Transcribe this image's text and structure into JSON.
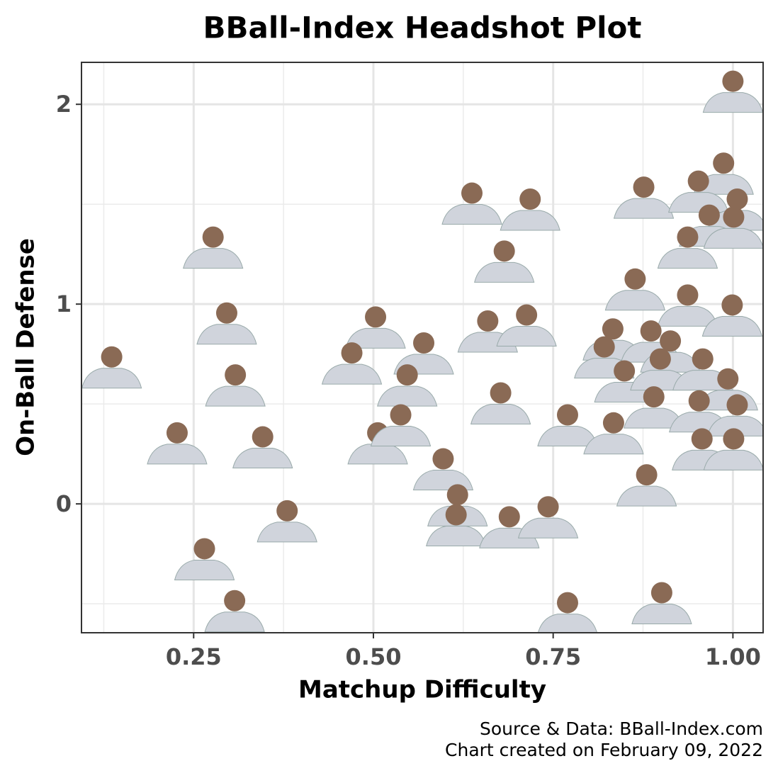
{
  "chart_data": {
    "type": "scatter",
    "title": "BBall-Index Headshot Plot",
    "x_label": "Matchup Difficulty",
    "y_label": "On-Ball Defense",
    "caption": [
      "Source & Data: BBall-Index.com",
      "Chart created on February 09, 2022"
    ],
    "x": [
      1.0,
      0.637,
      0.718,
      0.277,
      0.682,
      0.876,
      0.987,
      0.952,
      1.006,
      0.967,
      1.001,
      0.937,
      0.864,
      0.296,
      0.503,
      0.659,
      0.713,
      0.937,
      0.999,
      0.136,
      0.47,
      0.57,
      0.833,
      0.886,
      0.821,
      0.913,
      0.308,
      0.547,
      0.849,
      0.899,
      0.958,
      0.993,
      0.677,
      0.89,
      0.953,
      1.006,
      0.227,
      0.346,
      0.506,
      0.538,
      0.77,
      0.834,
      0.957,
      1.001,
      0.597,
      0.88,
      0.38,
      0.617,
      0.615,
      0.689,
      0.743,
      0.265,
      0.307,
      0.77,
      0.901
    ],
    "y": [
      2.08,
      1.52,
      1.49,
      1.3,
      1.23,
      1.55,
      1.67,
      1.58,
      1.49,
      1.41,
      1.4,
      1.3,
      1.09,
      0.92,
      0.9,
      0.88,
      0.91,
      1.01,
      0.96,
      0.7,
      0.72,
      0.77,
      0.84,
      0.83,
      0.75,
      0.78,
      0.61,
      0.61,
      0.63,
      0.69,
      0.69,
      0.59,
      0.52,
      0.5,
      0.48,
      0.46,
      0.32,
      0.3,
      0.32,
      0.41,
      0.41,
      0.37,
      0.29,
      0.29,
      0.19,
      0.11,
      -0.07,
      0.01,
      -0.09,
      -0.1,
      -0.05,
      -0.26,
      -0.52,
      -0.53,
      -0.48
    ],
    "xlim": [
      0.094,
      1.042
    ],
    "ylim": [
      -0.645,
      2.21
    ],
    "xticks": [
      0.25,
      {
        "value": 0.5,
        "label": "0.50"
      },
      0.75,
      {
        "value": 1.0,
        "label": "1.00"
      }
    ],
    "yticks": [
      0,
      1,
      2
    ],
    "grid": true,
    "minor_grid": true,
    "color": "#8a6a55"
  }
}
